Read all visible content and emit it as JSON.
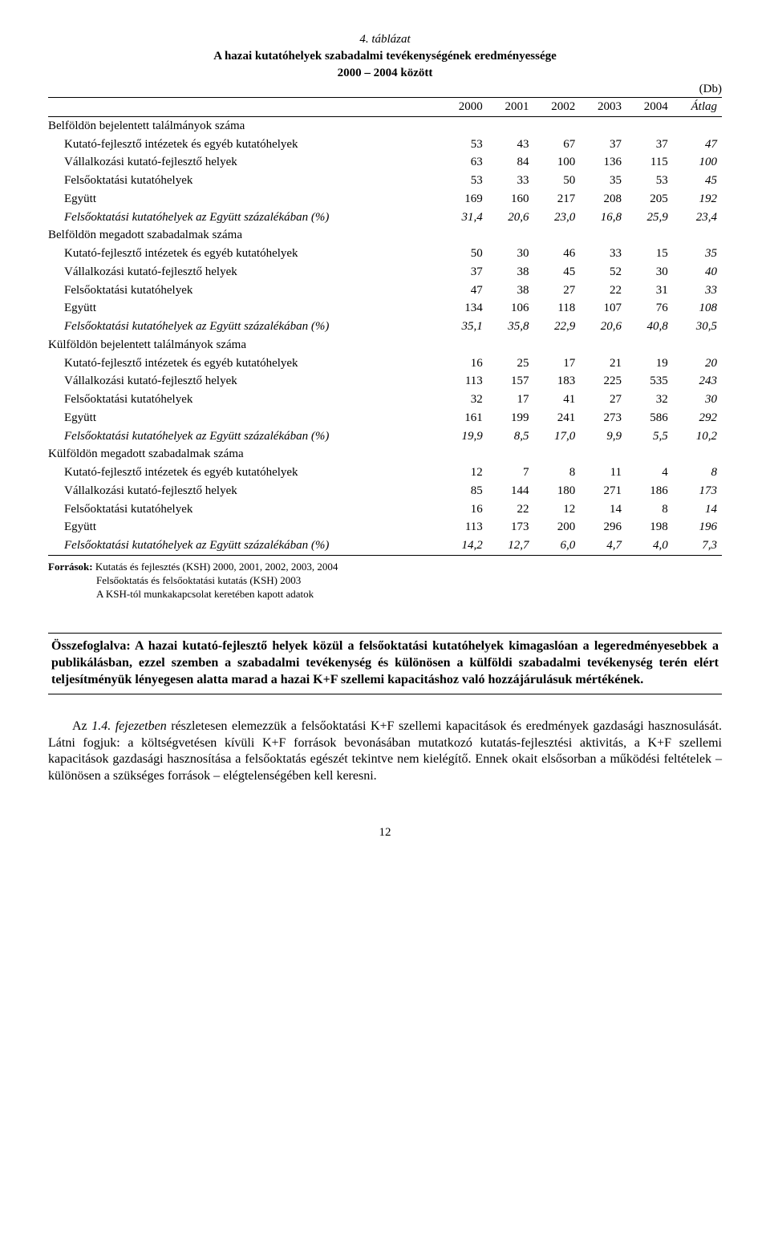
{
  "table": {
    "caption": "4. táblázat",
    "title_line1": "A hazai kutatóhelyek szabadalmi tevékenységének eredményessége",
    "title_line2": "2000 – 2004 között",
    "unit": "(Db)",
    "columns": [
      "",
      "2000",
      "2001",
      "2002",
      "2003",
      "2004",
      "Átlag"
    ],
    "sections": [
      {
        "header": "Belföldön bejelentett találmányok száma",
        "rows": [
          {
            "label": "Kutató-fejlesztő intézetek és egyéb kutatóhelyek",
            "v": [
              "53",
              "43",
              "67",
              "37",
              "37",
              "47"
            ]
          },
          {
            "label": "Vállalkozási kutató-fejlesztő helyek",
            "v": [
              "63",
              "84",
              "100",
              "136",
              "115",
              "100"
            ]
          },
          {
            "label": "Felsőoktatási kutatóhelyek",
            "v": [
              "53",
              "33",
              "50",
              "35",
              "53",
              "45"
            ]
          },
          {
            "label": "Együtt",
            "v": [
              "169",
              "160",
              "217",
              "208",
              "205",
              "192"
            ]
          },
          {
            "label": "Felsőoktatási kutatóhelyek az Együtt százalékában (%)",
            "v": [
              "31,4",
              "20,6",
              "23,0",
              "16,8",
              "25,9",
              "23,4"
            ],
            "italic": true
          }
        ]
      },
      {
        "header": "Belföldön megadott szabadalmak száma",
        "rows": [
          {
            "label": "Kutató-fejlesztő intézetek és egyéb kutatóhelyek",
            "v": [
              "50",
              "30",
              "46",
              "33",
              "15",
              "35"
            ]
          },
          {
            "label": "Vállalkozási kutató-fejlesztő helyek",
            "v": [
              "37",
              "38",
              "45",
              "52",
              "30",
              "40"
            ]
          },
          {
            "label": "Felsőoktatási kutatóhelyek",
            "v": [
              "47",
              "38",
              "27",
              "22",
              "31",
              "33"
            ]
          },
          {
            "label": "Együtt",
            "v": [
              "134",
              "106",
              "118",
              "107",
              "76",
              "108"
            ]
          },
          {
            "label": "Felsőoktatási kutatóhelyek az Együtt százalékában (%)",
            "v": [
              "35,1",
              "35,8",
              "22,9",
              "20,6",
              "40,8",
              "30,5"
            ],
            "italic": true
          }
        ]
      },
      {
        "header": "Külföldön bejelentett találmányok száma",
        "rows": [
          {
            "label": "Kutató-fejlesztő intézetek és egyéb kutatóhelyek",
            "v": [
              "16",
              "25",
              "17",
              "21",
              "19",
              "20"
            ]
          },
          {
            "label": "Vállalkozási kutató-fejlesztő helyek",
            "v": [
              "113",
              "157",
              "183",
              "225",
              "535",
              "243"
            ]
          },
          {
            "label": "Felsőoktatási kutatóhelyek",
            "v": [
              "32",
              "17",
              "41",
              "27",
              "32",
              "30"
            ]
          },
          {
            "label": "Együtt",
            "v": [
              "161",
              "199",
              "241",
              "273",
              "586",
              "292"
            ]
          },
          {
            "label": "Felsőoktatási kutatóhelyek az Együtt százalékában (%)",
            "v": [
              "19,9",
              "8,5",
              "17,0",
              "9,9",
              "5,5",
              "10,2"
            ],
            "italic": true
          }
        ]
      },
      {
        "header": "Külföldön megadott szabadalmak száma",
        "rows": [
          {
            "label": "Kutató-fejlesztő intézetek és egyéb kutatóhelyek",
            "v": [
              "12",
              "7",
              "8",
              "11",
              "4",
              "8"
            ]
          },
          {
            "label": "Vállalkozási kutató-fejlesztő helyek",
            "v": [
              "85",
              "144",
              "180",
              "271",
              "186",
              "173"
            ]
          },
          {
            "label": "Felsőoktatási kutatóhelyek",
            "v": [
              "16",
              "22",
              "12",
              "14",
              "8",
              "14"
            ]
          },
          {
            "label": "Együtt",
            "v": [
              "113",
              "173",
              "200",
              "296",
              "198",
              "196"
            ]
          },
          {
            "label": "Felsőoktatási kutatóhelyek az Együtt százalékában (%)",
            "v": [
              "14,2",
              "12,7",
              "6,0",
              "4,7",
              "4,0",
              "7,3"
            ],
            "italic": true,
            "last": true
          }
        ]
      }
    ]
  },
  "sources": {
    "label": "Források:",
    "lines": [
      "Kutatás és fejlesztés (KSH) 2000, 2001, 2002, 2003, 2004",
      "Felsőoktatás és felsőoktatási kutatás (KSH) 2003",
      "A KSH-tól munkakapcsolat keretében kapott adatok"
    ]
  },
  "summary": {
    "lead": "Összefoglalva: ",
    "text": "A hazai kutató-fejlesztő helyek közül a felsőoktatási kutatóhelyek kimagaslóan a legeredményesebbek a publikálásban, ezzel szemben a szabadalmi tevékenység és különösen a külföldi szabadalmi tevékenység terén elért teljesítményük lényegesen alatta marad a hazai K+F szellemi kapacitáshoz való hozzájárulásuk mértékének."
  },
  "paragraph": {
    "lead_plain": "Az ",
    "lead_italic": "1.4. fejezetben",
    "rest": " részletesen elemezzük a felsőoktatási K+F szellemi kapacitások és eredmények gazdasági hasznosulását. Látni fogjuk: a költségvetésen kívüli K+F források bevonásában mutatkozó kutatás-fejlesztési aktivitás, a K+F szellemi kapacitások gazdasági hasznosítása a felsőoktatás egészét tekintve nem kielégítő. Ennek okait elsősorban a működési feltételek – különösen a szükséges források – elégtelenségében kell keresni."
  },
  "page_number": "12"
}
